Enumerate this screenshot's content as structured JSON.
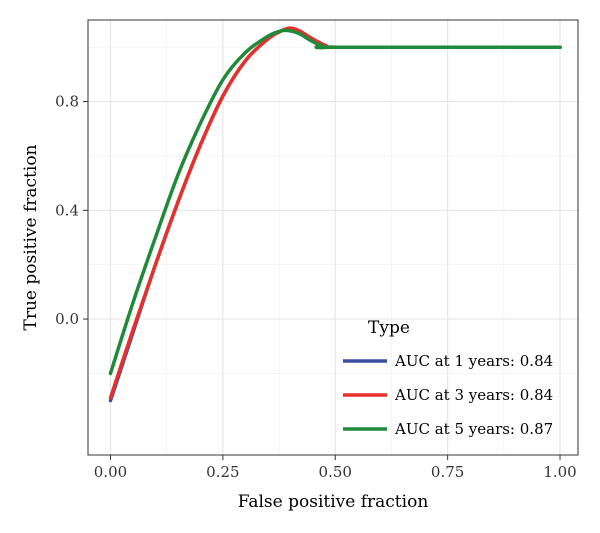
{
  "chart_data": {
    "type": "line",
    "xlabel": "False positive fraction",
    "ylabel": "True positive fraction",
    "xlim": [
      -0.05,
      1.04
    ],
    "ylim": [
      -0.5,
      1.1
    ],
    "x_ticks": [
      0.0,
      0.25,
      0.5,
      0.75,
      1.0
    ],
    "x_tick_labels": [
      "0.00",
      "0.25",
      "0.50",
      "0.75",
      "1.00"
    ],
    "y_ticks": [
      0.0,
      0.4,
      0.8
    ],
    "y_tick_labels": [
      "0.0",
      "0.4",
      "0.8"
    ],
    "grid": true,
    "legend": {
      "title": "Type",
      "position": "bottom-right"
    },
    "series": [
      {
        "name": "AUC at 1 years: 0.84",
        "color": "#3a4ea0",
        "x": [
          0.0,
          0.05,
          0.1,
          0.15,
          0.2,
          0.25,
          0.3,
          0.35,
          0.38,
          0.4,
          0.42,
          0.45,
          0.48,
          0.5,
          1.0
        ],
        "y": [
          -0.3,
          -0.05,
          0.2,
          0.43,
          0.64,
          0.82,
          0.95,
          1.03,
          1.06,
          1.07,
          1.06,
          1.03,
          1.005,
          1.0,
          1.0
        ]
      },
      {
        "name": "AUC at 3 years: 0.84",
        "color": "#e8302b",
        "x": [
          0.0,
          0.05,
          0.1,
          0.15,
          0.2,
          0.25,
          0.3,
          0.35,
          0.38,
          0.4,
          0.42,
          0.45,
          0.48,
          0.5,
          1.0
        ],
        "y": [
          -0.29,
          -0.04,
          0.2,
          0.43,
          0.64,
          0.82,
          0.95,
          1.03,
          1.06,
          1.07,
          1.06,
          1.03,
          1.005,
          1.0,
          1.0
        ]
      },
      {
        "name": "AUC at 5 years: 0.87",
        "color": "#1f8a3a",
        "x": [
          0.0,
          0.05,
          0.1,
          0.15,
          0.2,
          0.25,
          0.3,
          0.35,
          0.38,
          0.4,
          0.42,
          0.45,
          0.48,
          0.5,
          1.0
        ],
        "y": [
          -0.2,
          0.06,
          0.3,
          0.53,
          0.72,
          0.88,
          0.98,
          1.04,
          1.06,
          1.06,
          1.05,
          1.02,
          1.0,
          1.0,
          1.0
        ]
      }
    ]
  }
}
